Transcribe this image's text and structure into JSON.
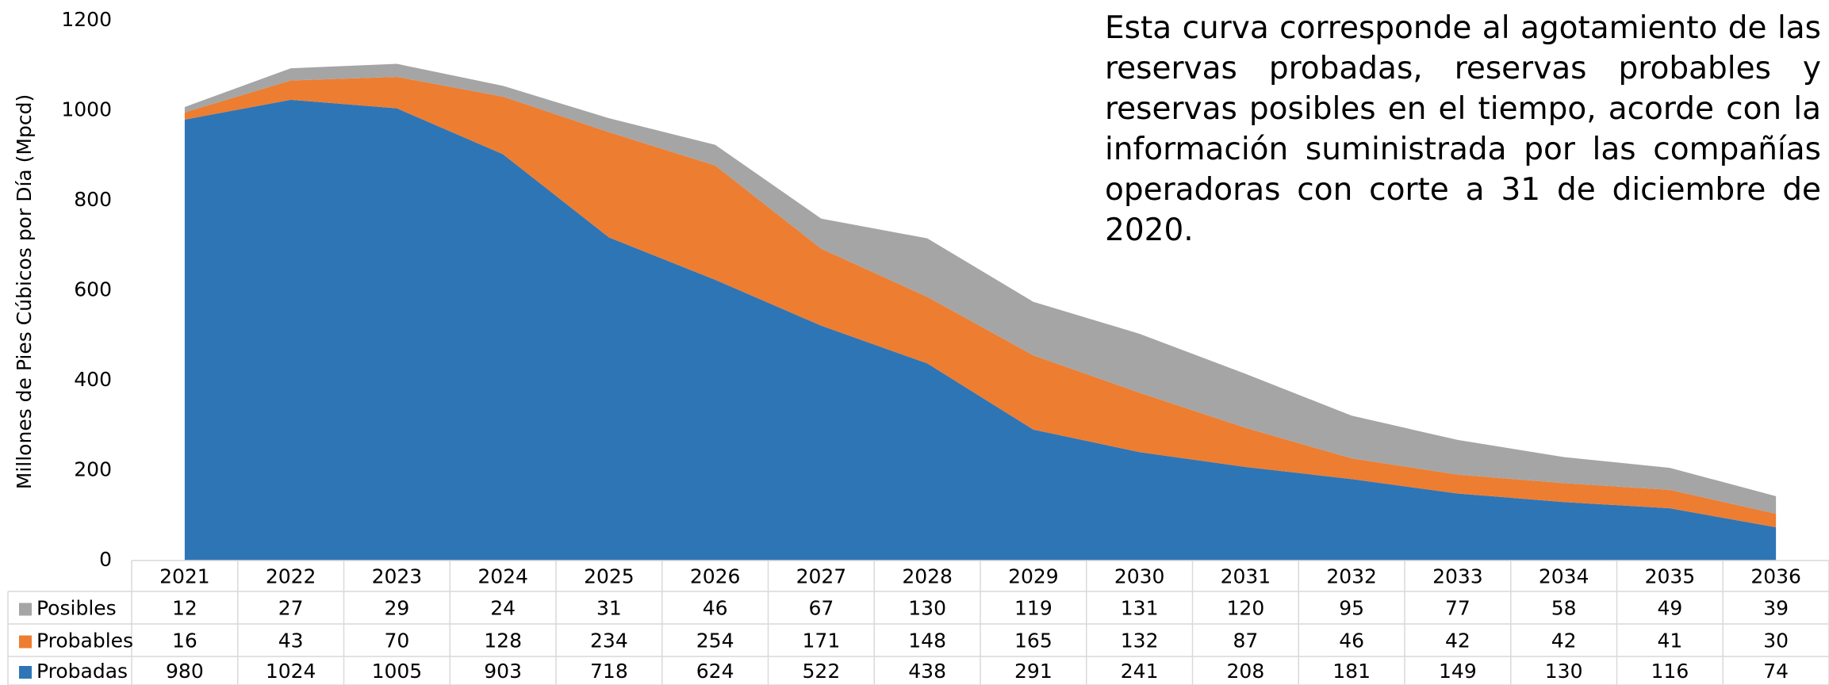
{
  "chart_data": {
    "type": "stacked_area",
    "y_label": "Millones de Pies Cúbicos por Día (Mpcd)",
    "annotation": "Esta curva corresponde al agotamiento de las reservas probadas, reservas probables y reservas posibles en el tiempo, acorde con la información suministrada por las compañías operadoras con corte a 31 de diciembre de 2020.",
    "categories": [
      "2021",
      "2022",
      "2023",
      "2024",
      "2025",
      "2026",
      "2027",
      "2028",
      "2029",
      "2030",
      "2031",
      "2032",
      "2033",
      "2034",
      "2035",
      "2036"
    ],
    "series": [
      {
        "name": "Posibles",
        "color": "#a5a5a5",
        "values": [
          12,
          27,
          29,
          24,
          31,
          46,
          67,
          130,
          119,
          131,
          120,
          95,
          77,
          58,
          49,
          39
        ]
      },
      {
        "name": "Probables",
        "color": "#ed7d31",
        "values": [
          16,
          43,
          70,
          128,
          234,
          254,
          171,
          148,
          165,
          132,
          87,
          46,
          42,
          42,
          41,
          30
        ]
      },
      {
        "name": "Probadas",
        "color": "#2e75b6",
        "values": [
          980,
          1024,
          1005,
          903,
          718,
          624,
          522,
          438,
          291,
          241,
          208,
          181,
          149,
          130,
          116,
          74
        ]
      }
    ],
    "ylim": [
      0,
      1200
    ],
    "yticks": [
      0,
      200,
      400,
      600,
      800,
      1000,
      1200
    ],
    "grid": false
  }
}
